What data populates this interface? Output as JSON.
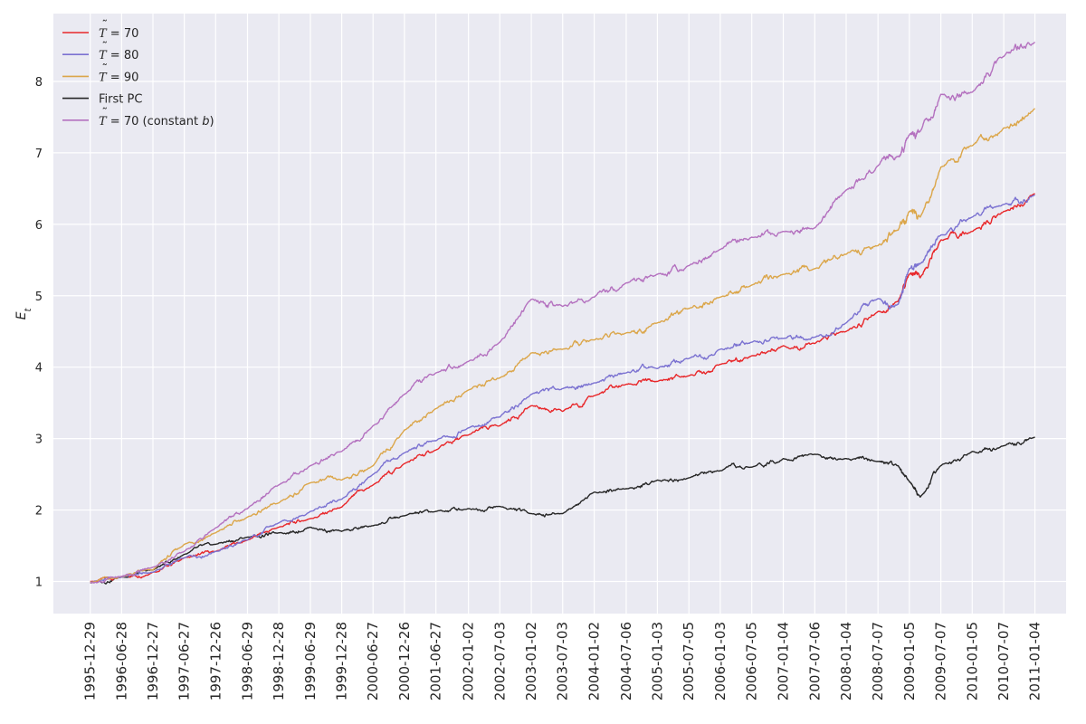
{
  "chart_data": {
    "type": "line",
    "title": "",
    "xlabel": "",
    "ylabel": "E_t",
    "ylabel_main": "E",
    "ylabel_sub": "t",
    "ylim": [
      0.55,
      8.95
    ],
    "xlim": [
      "1995-05-29",
      "2011-07-04"
    ],
    "y_ticks": [
      1,
      2,
      3,
      4,
      5,
      6,
      7,
      8
    ],
    "x_ticks": [
      "1995-12-29",
      "1996-06-28",
      "1996-12-27",
      "1997-06-27",
      "1997-12-26",
      "1998-06-29",
      "1998-12-28",
      "1999-06-29",
      "1999-12-28",
      "2000-06-27",
      "2000-12-26",
      "2001-06-27",
      "2002-01-02",
      "2002-07-03",
      "2003-01-02",
      "2003-07-03",
      "2004-01-02",
      "2004-07-06",
      "2005-01-03",
      "2005-07-05",
      "2006-01-03",
      "2006-07-05",
      "2007-01-04",
      "2007-07-06",
      "2008-01-04",
      "2008-07-07",
      "2009-01-05",
      "2009-07-07",
      "2010-01-05",
      "2010-07-07",
      "2011-01-04"
    ],
    "grid": true,
    "legend_position": "top-left",
    "x": [
      "1995-12-29",
      "1996-06-28",
      "1996-12-27",
      "1997-06-27",
      "1997-12-26",
      "1998-06-29",
      "1998-12-28",
      "1999-06-29",
      "1999-12-28",
      "2000-06-27",
      "2000-12-26",
      "2001-06-27",
      "2002-01-02",
      "2002-07-03",
      "2003-01-02",
      "2003-07-03",
      "2004-01-02",
      "2004-07-06",
      "2005-01-03",
      "2005-07-05",
      "2006-01-03",
      "2006-07-05",
      "2007-01-04",
      "2007-07-06",
      "2008-01-04",
      "2008-07-07",
      "2008-11-01",
      "2009-01-05",
      "2009-03-09",
      "2009-07-07",
      "2010-01-05",
      "2010-07-07",
      "2011-01-04"
    ],
    "series": [
      {
        "name_math": "T",
        "name_rest": " = 70",
        "color": "#e8272a",
        "values": [
          1.0,
          1.06,
          1.13,
          1.33,
          1.42,
          1.58,
          1.76,
          1.88,
          2.04,
          2.35,
          2.65,
          2.84,
          3.05,
          3.18,
          3.46,
          3.38,
          3.6,
          3.76,
          3.8,
          3.88,
          4.04,
          4.16,
          4.3,
          4.33,
          4.5,
          4.78,
          4.92,
          5.3,
          5.25,
          5.78,
          5.9,
          6.18,
          6.43
        ]
      },
      {
        "name_math": "T",
        "name_rest": " = 80",
        "color": "#7b72d1",
        "values": [
          0.99,
          1.06,
          1.13,
          1.33,
          1.42,
          1.58,
          1.82,
          1.98,
          2.15,
          2.5,
          2.8,
          2.97,
          3.15,
          3.3,
          3.62,
          3.7,
          3.78,
          3.92,
          3.98,
          4.12,
          4.25,
          4.35,
          4.4,
          4.42,
          4.62,
          4.96,
          4.88,
          5.38,
          5.45,
          5.85,
          6.1,
          6.28,
          6.41
        ]
      },
      {
        "name_math": "T",
        "name_rest": " = 90",
        "color": "#dba64a",
        "values": [
          0.99,
          1.07,
          1.16,
          1.52,
          1.68,
          1.9,
          2.1,
          2.38,
          2.42,
          2.62,
          3.12,
          3.42,
          3.68,
          3.85,
          4.2,
          4.25,
          4.38,
          4.48,
          4.62,
          4.82,
          4.98,
          5.15,
          5.3,
          5.38,
          5.58,
          5.7,
          5.92,
          6.18,
          6.1,
          6.8,
          7.1,
          7.35,
          7.62
        ]
      },
      {
        "name_math": "",
        "name_rest": "First PC",
        "color": "#262626",
        "values": [
          0.98,
          1.06,
          1.16,
          1.38,
          1.52,
          1.62,
          1.68,
          1.76,
          1.7,
          1.78,
          1.92,
          1.98,
          2.02,
          2.05,
          1.95,
          1.95,
          2.25,
          2.3,
          2.42,
          2.45,
          2.55,
          2.6,
          2.72,
          2.78,
          2.72,
          2.68,
          2.62,
          2.4,
          2.18,
          2.62,
          2.82,
          2.9,
          3.02
        ]
      },
      {
        "name_math": "T",
        "name_rest": " = 70 (constant ",
        "name_italic": "b",
        "name_tail": ")",
        "color": "#b471bf",
        "values": [
          0.98,
          1.07,
          1.2,
          1.42,
          1.75,
          2.02,
          2.35,
          2.62,
          2.82,
          3.18,
          3.62,
          3.92,
          4.08,
          4.35,
          4.95,
          4.85,
          4.98,
          5.18,
          5.3,
          5.42,
          5.65,
          5.82,
          5.9,
          5.95,
          6.48,
          6.82,
          6.95,
          7.25,
          7.3,
          7.82,
          7.85,
          8.35,
          8.55
        ]
      }
    ]
  }
}
